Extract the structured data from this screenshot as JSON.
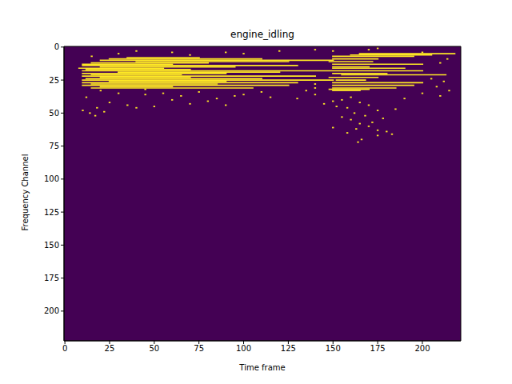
{
  "chart_data": {
    "type": "heatmap",
    "title": "engine_idling",
    "x_label": "Time frame",
    "y_label": "Frequency Channel",
    "xlim": [
      -0.5,
      221.5
    ],
    "ylim": [
      222.5,
      -0.5
    ],
    "xticks": [
      0,
      25,
      50,
      75,
      100,
      125,
      150,
      175,
      200
    ],
    "yticks": [
      0,
      25,
      50,
      75,
      100,
      125,
      150,
      175,
      200
    ],
    "grid": false,
    "color": "#fde725",
    "streaks": [
      [
        5,
        165,
        218
      ],
      [
        6,
        160,
        205
      ],
      [
        7,
        150,
        195
      ],
      [
        8,
        35,
        75
      ],
      [
        9,
        25,
        110
      ],
      [
        9,
        150,
        175
      ],
      [
        10,
        20,
        150
      ],
      [
        11,
        40,
        125
      ],
      [
        11,
        148,
        172
      ],
      [
        12,
        15,
        80
      ],
      [
        13,
        10,
        60
      ],
      [
        13,
        150,
        200
      ],
      [
        14,
        10,
        130
      ],
      [
        15,
        20,
        95
      ],
      [
        15,
        150,
        170
      ],
      [
        16,
        8,
        55
      ],
      [
        16,
        150,
        190
      ],
      [
        17,
        12,
        70
      ],
      [
        18,
        10,
        200
      ],
      [
        19,
        30,
        120
      ],
      [
        20,
        10,
        90
      ],
      [
        20,
        150,
        180
      ],
      [
        21,
        15,
        65
      ],
      [
        21,
        155,
        213
      ],
      [
        22,
        10,
        140
      ],
      [
        23,
        20,
        70
      ],
      [
        23,
        148,
        175
      ],
      [
        24,
        12,
        110
      ],
      [
        25,
        10,
        150
      ],
      [
        25,
        152,
        168
      ],
      [
        26,
        25,
        90
      ],
      [
        27,
        10,
        130
      ],
      [
        27,
        150,
        200
      ],
      [
        28,
        15,
        85
      ],
      [
        29,
        10,
        125
      ],
      [
        29,
        150,
        195
      ],
      [
        30,
        20,
        60
      ],
      [
        31,
        15,
        105
      ],
      [
        31,
        150,
        185
      ],
      [
        32,
        148,
        170
      ],
      [
        33,
        150,
        165
      ]
    ],
    "dots": [
      [
        40,
        3
      ],
      [
        90,
        4
      ],
      [
        120,
        3
      ],
      [
        170,
        2
      ],
      [
        200,
        4
      ],
      [
        20,
        33
      ],
      [
        30,
        35
      ],
      [
        45,
        36
      ],
      [
        12,
        38
      ],
      [
        60,
        40
      ],
      [
        25,
        42
      ],
      [
        35,
        44
      ],
      [
        18,
        46
      ],
      [
        10,
        48
      ],
      [
        14,
        50
      ],
      [
        17,
        52
      ],
      [
        22,
        49
      ],
      [
        80,
        41
      ],
      [
        95,
        37
      ],
      [
        110,
        34
      ],
      [
        130,
        39
      ],
      [
        70,
        43
      ],
      [
        50,
        45
      ],
      [
        140,
        36
      ],
      [
        160,
        38
      ],
      [
        155,
        40
      ],
      [
        165,
        42
      ],
      [
        170,
        44
      ],
      [
        158,
        46
      ],
      [
        175,
        48
      ],
      [
        162,
        50
      ],
      [
        168,
        52
      ],
      [
        160,
        55
      ],
      [
        165,
        58
      ],
      [
        170,
        60
      ],
      [
        163,
        62
      ],
      [
        158,
        65
      ],
      [
        175,
        67
      ],
      [
        166,
        70
      ],
      [
        164,
        72
      ],
      [
        180,
        64
      ],
      [
        183,
        66
      ],
      [
        178,
        54
      ],
      [
        185,
        47
      ],
      [
        190,
        39
      ],
      [
        200,
        35
      ],
      [
        210,
        37
      ],
      [
        215,
        33
      ],
      [
        208,
        30
      ],
      [
        212,
        26
      ],
      [
        205,
        24
      ],
      [
        210,
        12
      ],
      [
        214,
        9
      ],
      [
        175,
        1
      ],
      [
        140,
        2
      ],
      [
        100,
        5
      ],
      [
        70,
        6
      ],
      [
        30,
        5
      ],
      [
        15,
        7
      ],
      [
        75,
        34
      ],
      [
        100,
        36
      ],
      [
        135,
        33
      ],
      [
        150,
        41
      ],
      [
        145,
        43
      ],
      [
        152,
        45
      ],
      [
        155,
        53
      ],
      [
        172,
        57
      ],
      [
        150,
        61
      ],
      [
        175,
        63
      ],
      [
        55,
        35
      ],
      [
        65,
        37
      ],
      [
        85,
        39
      ],
      [
        140,
        31
      ],
      [
        140,
        28
      ],
      [
        45,
        32
      ],
      [
        60,
        4
      ],
      [
        150,
        3
      ],
      [
        40,
        46
      ],
      [
        90,
        44
      ],
      [
        115,
        38
      ]
    ]
  }
}
